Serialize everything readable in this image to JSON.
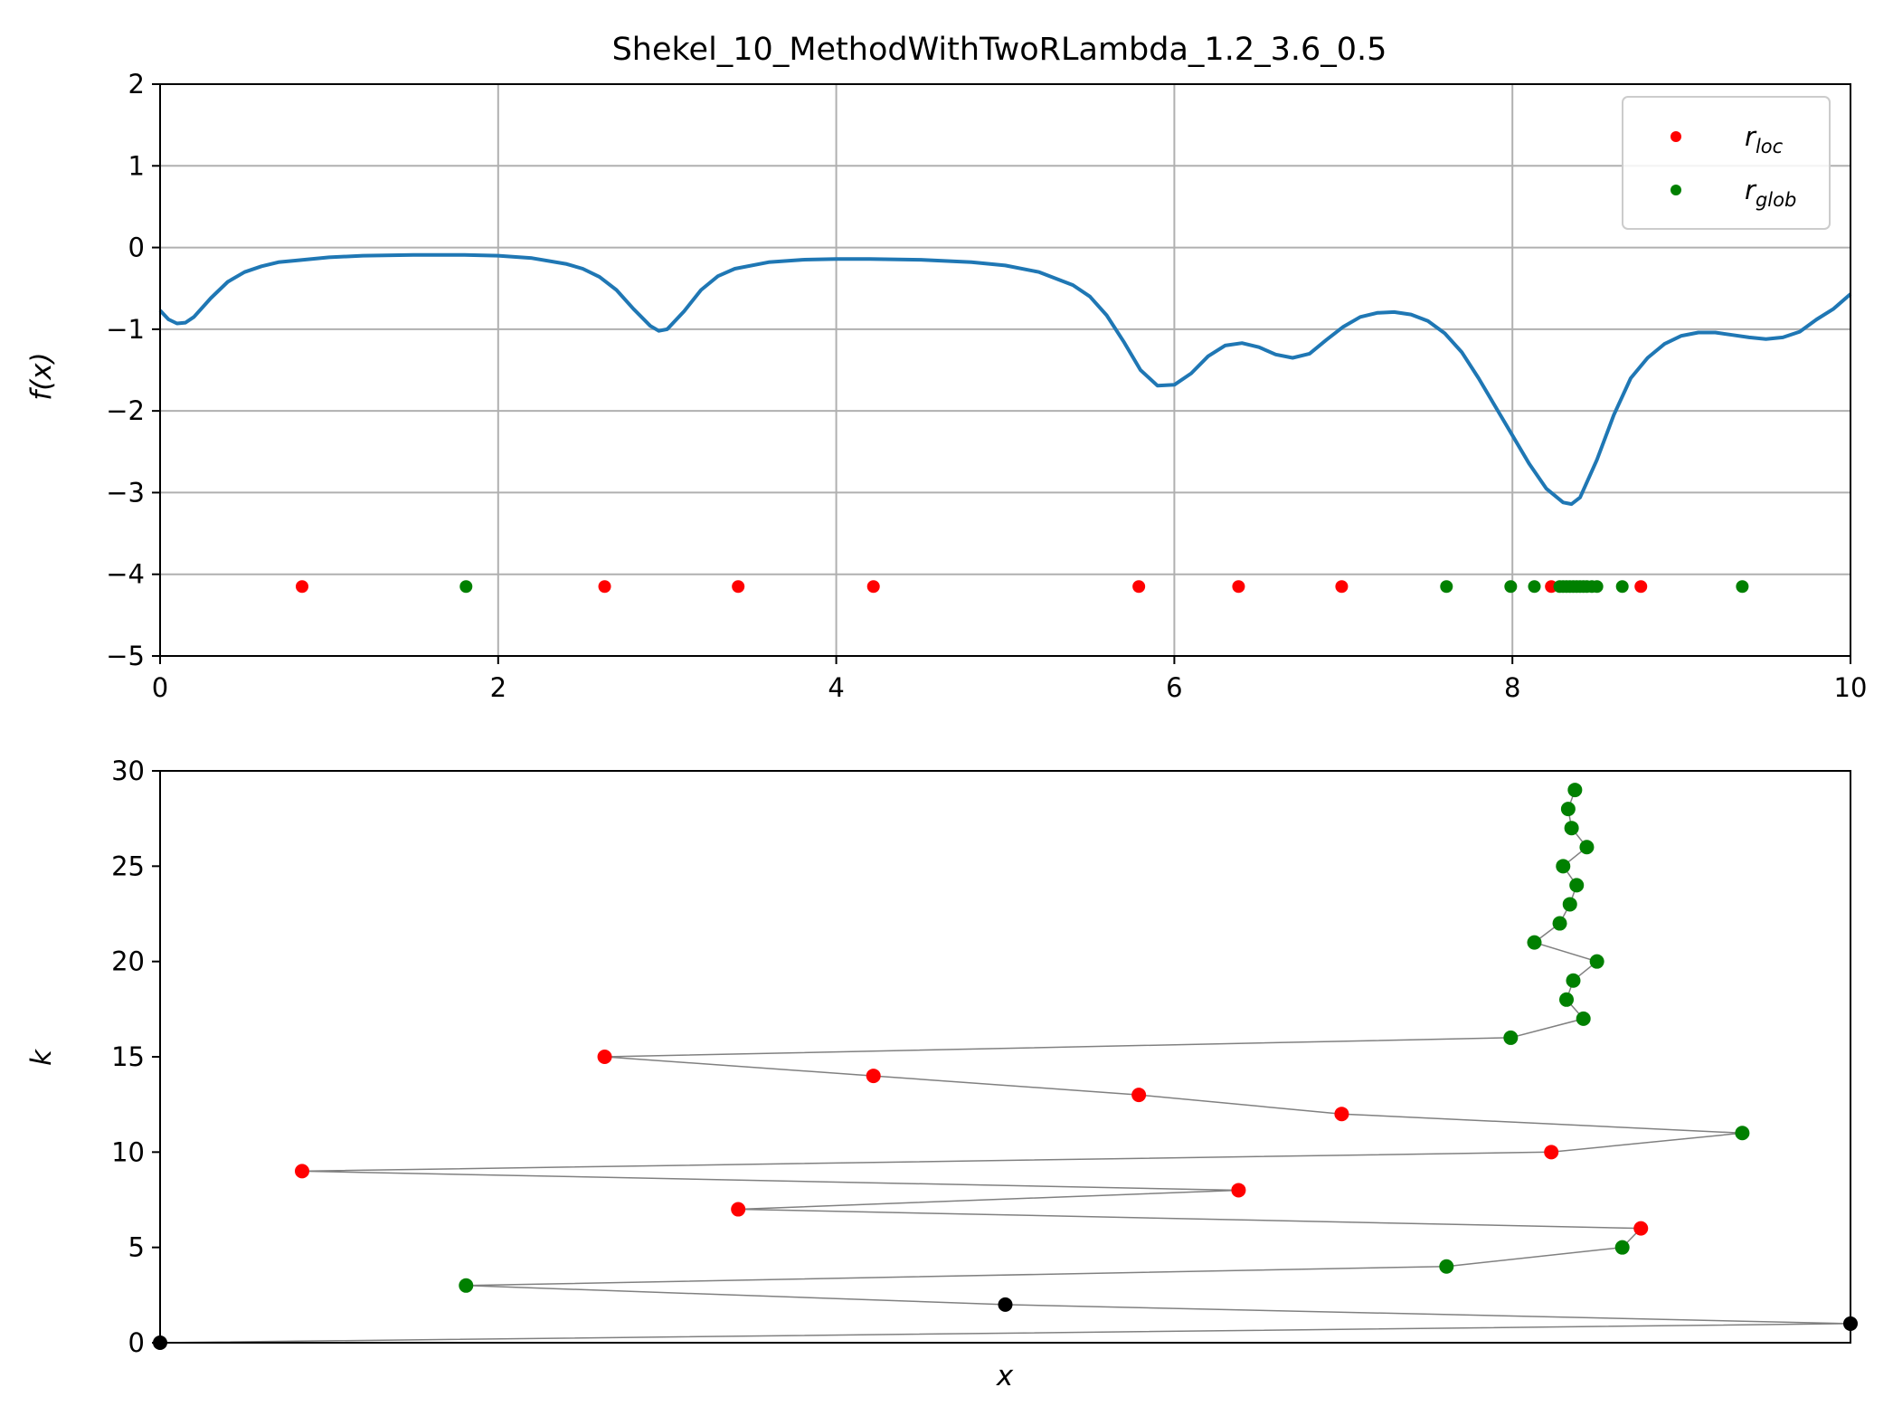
{
  "chart_data": [
    {
      "type": "line",
      "title": "Shekel_10_MethodWithTwoRLambda_1.2_3.6_0.5",
      "xlabel": "",
      "ylabel": "f(x)",
      "xlim": [
        0,
        10
      ],
      "ylim": [
        -5,
        2
      ],
      "xticks": [
        0,
        2,
        4,
        6,
        8,
        10
      ],
      "yticks": [
        -5,
        -4,
        -3,
        -2,
        -1,
        0,
        1,
        2
      ],
      "xtick_labels": [
        "0",
        "2",
        "4",
        "6",
        "8",
        "10"
      ],
      "ytick_labels": [
        "−5",
        "−4",
        "−3",
        "−2",
        "−1",
        "0",
        "1",
        "2"
      ],
      "grid": true,
      "legend": {
        "placement": "top-right",
        "entries": [
          {
            "symbol": "r",
            "subscript": "loc",
            "color": "#ff0000"
          },
          {
            "symbol": "r",
            "subscript": "glob",
            "color": "#008000"
          }
        ]
      },
      "curve": {
        "color": "#1f77b4",
        "x": [
          0,
          0.05,
          0.1,
          0.15,
          0.2,
          0.3,
          0.4,
          0.5,
          0.6,
          0.7,
          0.8,
          1.0,
          1.2,
          1.5,
          1.8,
          2.0,
          2.2,
          2.4,
          2.5,
          2.6,
          2.7,
          2.8,
          2.9,
          2.95,
          3.0,
          3.1,
          3.2,
          3.3,
          3.4,
          3.6,
          3.8,
          4.0,
          4.2,
          4.5,
          4.8,
          5.0,
          5.2,
          5.4,
          5.5,
          5.6,
          5.7,
          5.8,
          5.9,
          6.0,
          6.1,
          6.2,
          6.3,
          6.4,
          6.5,
          6.6,
          6.7,
          6.8,
          6.9,
          7.0,
          7.1,
          7.2,
          7.3,
          7.4,
          7.5,
          7.6,
          7.7,
          7.8,
          7.9,
          8.0,
          8.1,
          8.2,
          8.3,
          8.35,
          8.4,
          8.5,
          8.6,
          8.7,
          8.8,
          8.9,
          9.0,
          9.1,
          9.2,
          9.3,
          9.4,
          9.5,
          9.6,
          9.7,
          9.8,
          9.9,
          10.0
        ],
        "y": [
          -0.77,
          -0.88,
          -0.93,
          -0.92,
          -0.85,
          -0.62,
          -0.42,
          -0.3,
          -0.23,
          -0.18,
          -0.16,
          -0.12,
          -0.1,
          -0.09,
          -0.09,
          -0.1,
          -0.13,
          -0.2,
          -0.26,
          -0.36,
          -0.52,
          -0.75,
          -0.96,
          -1.02,
          -1.0,
          -0.78,
          -0.52,
          -0.35,
          -0.26,
          -0.18,
          -0.15,
          -0.14,
          -0.14,
          -0.15,
          -0.18,
          -0.22,
          -0.3,
          -0.46,
          -0.6,
          -0.83,
          -1.15,
          -1.5,
          -1.69,
          -1.68,
          -1.54,
          -1.33,
          -1.2,
          -1.17,
          -1.22,
          -1.31,
          -1.35,
          -1.3,
          -1.13,
          -0.97,
          -0.85,
          -0.8,
          -0.79,
          -0.82,
          -0.9,
          -1.05,
          -1.28,
          -1.6,
          -1.95,
          -2.3,
          -2.65,
          -2.95,
          -3.12,
          -3.14,
          -3.06,
          -2.6,
          -2.05,
          -1.6,
          -1.35,
          -1.18,
          -1.08,
          -1.04,
          -1.04,
          -1.07,
          -1.1,
          -1.12,
          -1.1,
          -1.03,
          -0.88,
          -0.75,
          -0.57
        ]
      },
      "trial_points": {
        "y_level": -4.15,
        "red_x": [
          0.84,
          2.63,
          3.42,
          4.22,
          5.79,
          6.38,
          6.99,
          8.23,
          8.76
        ],
        "green_x": [
          1.81,
          7.61,
          7.99,
          8.13,
          8.28,
          8.3,
          8.32,
          8.34,
          8.36,
          8.38,
          8.4,
          8.42,
          8.44,
          8.47,
          8.5,
          8.65,
          9.36
        ]
      }
    },
    {
      "type": "scatter",
      "title": "",
      "xlabel": "x",
      "ylabel": "k",
      "xlim": [
        0,
        10
      ],
      "ylim": [
        0,
        30
      ],
      "yticks": [
        0,
        5,
        10,
        15,
        20,
        25,
        30
      ],
      "ytick_labels": [
        "0",
        "5",
        "10",
        "15",
        "20",
        "25",
        "30"
      ],
      "grid": false,
      "line_color": "#808080",
      "colors": {
        "black": "#000000",
        "red": "#ff0000",
        "green": "#008000"
      },
      "points": [
        {
          "k": 0,
          "x": 0.0,
          "color": "black"
        },
        {
          "k": 1,
          "x": 10.0,
          "color": "black"
        },
        {
          "k": 2,
          "x": 5.0,
          "color": "black"
        },
        {
          "k": 3,
          "x": 1.81,
          "color": "green"
        },
        {
          "k": 4,
          "x": 7.61,
          "color": "green"
        },
        {
          "k": 5,
          "x": 8.65,
          "color": "green"
        },
        {
          "k": 6,
          "x": 8.76,
          "color": "red"
        },
        {
          "k": 7,
          "x": 3.42,
          "color": "red"
        },
        {
          "k": 8,
          "x": 6.38,
          "color": "red"
        },
        {
          "k": 9,
          "x": 0.84,
          "color": "red"
        },
        {
          "k": 10,
          "x": 8.23,
          "color": "red"
        },
        {
          "k": 11,
          "x": 9.36,
          "color": "green"
        },
        {
          "k": 12,
          "x": 6.99,
          "color": "red"
        },
        {
          "k": 13,
          "x": 5.79,
          "color": "red"
        },
        {
          "k": 14,
          "x": 4.22,
          "color": "red"
        },
        {
          "k": 15,
          "x": 2.63,
          "color": "red"
        },
        {
          "k": 16,
          "x": 7.99,
          "color": "green"
        },
        {
          "k": 17,
          "x": 8.42,
          "color": "green"
        },
        {
          "k": 18,
          "x": 8.32,
          "color": "green"
        },
        {
          "k": 19,
          "x": 8.36,
          "color": "green"
        },
        {
          "k": 20,
          "x": 8.5,
          "color": "green"
        },
        {
          "k": 21,
          "x": 8.13,
          "color": "green"
        },
        {
          "k": 22,
          "x": 8.28,
          "color": "green"
        },
        {
          "k": 23,
          "x": 8.34,
          "color": "green"
        },
        {
          "k": 24,
          "x": 8.38,
          "color": "green"
        },
        {
          "k": 25,
          "x": 8.3,
          "color": "green"
        },
        {
          "k": 26,
          "x": 8.44,
          "color": "green"
        },
        {
          "k": 27,
          "x": 8.35,
          "color": "green"
        },
        {
          "k": 28,
          "x": 8.33,
          "color": "green"
        },
        {
          "k": 29,
          "x": 8.37,
          "color": "green"
        }
      ]
    }
  ]
}
